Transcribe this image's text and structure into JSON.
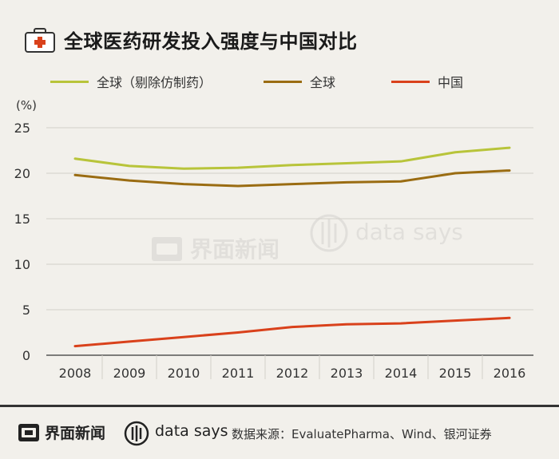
{
  "header": {
    "title": "全球医药研发投入强度与中国对比",
    "icon": "first-aid-kit-icon"
  },
  "chart_data": {
    "type": "line",
    "title": "全球医药研发投入强度与中国对比",
    "ylabel": "(%)",
    "xlabel": "",
    "ylim": [
      0,
      25
    ],
    "yticks": [
      0,
      5,
      10,
      15,
      20,
      25
    ],
    "grid": true,
    "legend_position": "top",
    "categories": [
      "2008",
      "2009",
      "2010",
      "2011",
      "2012",
      "2013",
      "2014",
      "2015",
      "2016"
    ],
    "series": [
      {
        "name": "全球（剔除仿制药）",
        "color": "#b8c43a",
        "values": [
          21.6,
          20.8,
          20.5,
          20.6,
          20.9,
          21.1,
          21.3,
          22.3,
          22.8
        ]
      },
      {
        "name": "全球",
        "color": "#9a6c12",
        "values": [
          19.8,
          19.2,
          18.8,
          18.6,
          18.8,
          19.0,
          19.1,
          20.0,
          20.3
        ]
      },
      {
        "name": "中国",
        "color": "#d9411b",
        "values": [
          1.0,
          1.5,
          2.0,
          2.5,
          3.1,
          3.4,
          3.5,
          3.8,
          4.1
        ]
      }
    ]
  },
  "legend": {
    "items": [
      {
        "label": "全球（剔除仿制药）",
        "color": "#b8c43a"
      },
      {
        "label": "全球",
        "color": "#9a6c12"
      },
      {
        "label": "中国",
        "color": "#d9411b"
      }
    ]
  },
  "watermark": {
    "brand": "界面新闻",
    "tagline": "data says"
  },
  "footer": {
    "brand": "界面新闻",
    "datasays": "data says",
    "source": "数据来源：EvaluatePharma、Wind、银河证券"
  }
}
